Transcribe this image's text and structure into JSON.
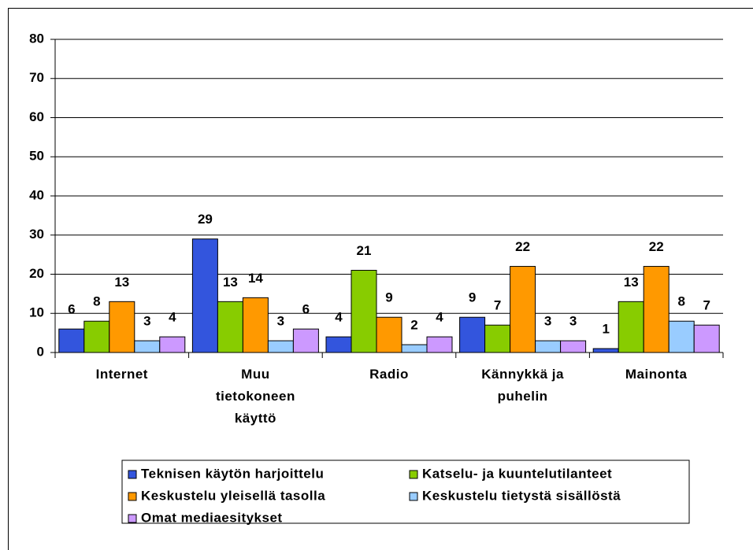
{
  "chart_data": {
    "type": "bar",
    "categories": [
      "Internet",
      "Muu tietokoneen käyttö",
      "Radio",
      "Kännykkä ja puhelin",
      "Mainonta"
    ],
    "series": [
      {
        "name": "Teknisen käytön harjoittelu",
        "color": "#3355dd",
        "values": [
          6,
          29,
          4,
          9,
          1
        ]
      },
      {
        "name": "Katselu- ja kuuntelutilanteet",
        "color": "#88cc00",
        "values": [
          8,
          13,
          21,
          7,
          13
        ]
      },
      {
        "name": "Keskustelu yleisellä tasolla",
        "color": "#ff9900",
        "values": [
          13,
          14,
          9,
          22,
          22
        ]
      },
      {
        "name": "Keskustelu tietystä sisällöstä",
        "color": "#99ccff",
        "values": [
          3,
          3,
          2,
          3,
          8
        ]
      },
      {
        "name": "Omat mediaesitykset",
        "color": "#cc99ff",
        "values": [
          4,
          6,
          4,
          3,
          7
        ]
      }
    ],
    "ylim": [
      0,
      80
    ],
    "yticks": [
      0,
      10,
      20,
      30,
      40,
      50,
      60,
      70,
      80
    ],
    "grid": true,
    "legend": "bottom"
  }
}
